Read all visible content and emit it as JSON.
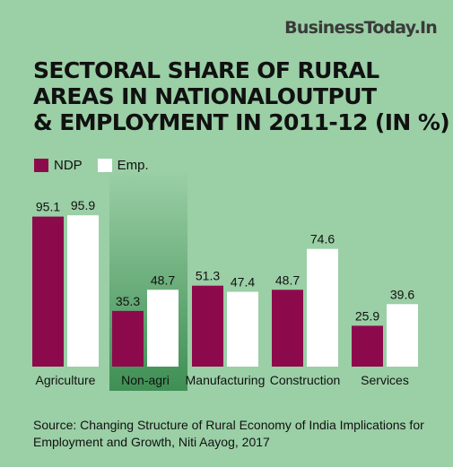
{
  "brand": "BusinessToday.In",
  "title_lines": [
    "SECTORAL SHARE OF RURAL",
    "AREAS IN NATIONALOUTPUT",
    "& EMPLOYMENT IN 2011-12 (IN %)"
  ],
  "source": "Source: Changing Structure of Rural Economy of India Implications for Employment and Growth, Niti Aayog, 2017",
  "colors": {
    "background": "#9bcfa6",
    "ndp": "#8c0a4c",
    "emp": "#ffffff",
    "highlight_band": "#3f8f54"
  },
  "chart_data": {
    "type": "bar",
    "title": "SECTORAL SHARE OF RURAL AREAS IN NATIONALOUTPUT & EMPLOYMENT IN 2011-12 (IN %)",
    "categories": [
      "Agriculture",
      "Non-agri",
      "Manufacturing",
      "Construction",
      "Services"
    ],
    "highlighted_category": "Non-agri",
    "series": [
      {
        "name": "NDP",
        "values": [
          95.1,
          35.3,
          51.3,
          48.7,
          25.9
        ]
      },
      {
        "name": "Emp.",
        "values": [
          95.9,
          48.7,
          47.4,
          74.6,
          39.6
        ]
      }
    ],
    "value_labels": {
      "NDP": [
        "95.1",
        "35.3",
        "51.3",
        "48.7",
        "25.9"
      ],
      "Emp.": [
        "95.9",
        "48.7",
        "47.4",
        "74.6",
        "39.6"
      ]
    },
    "ylim": [
      0,
      100
    ],
    "grid": false,
    "legend_position": "top-left"
  }
}
